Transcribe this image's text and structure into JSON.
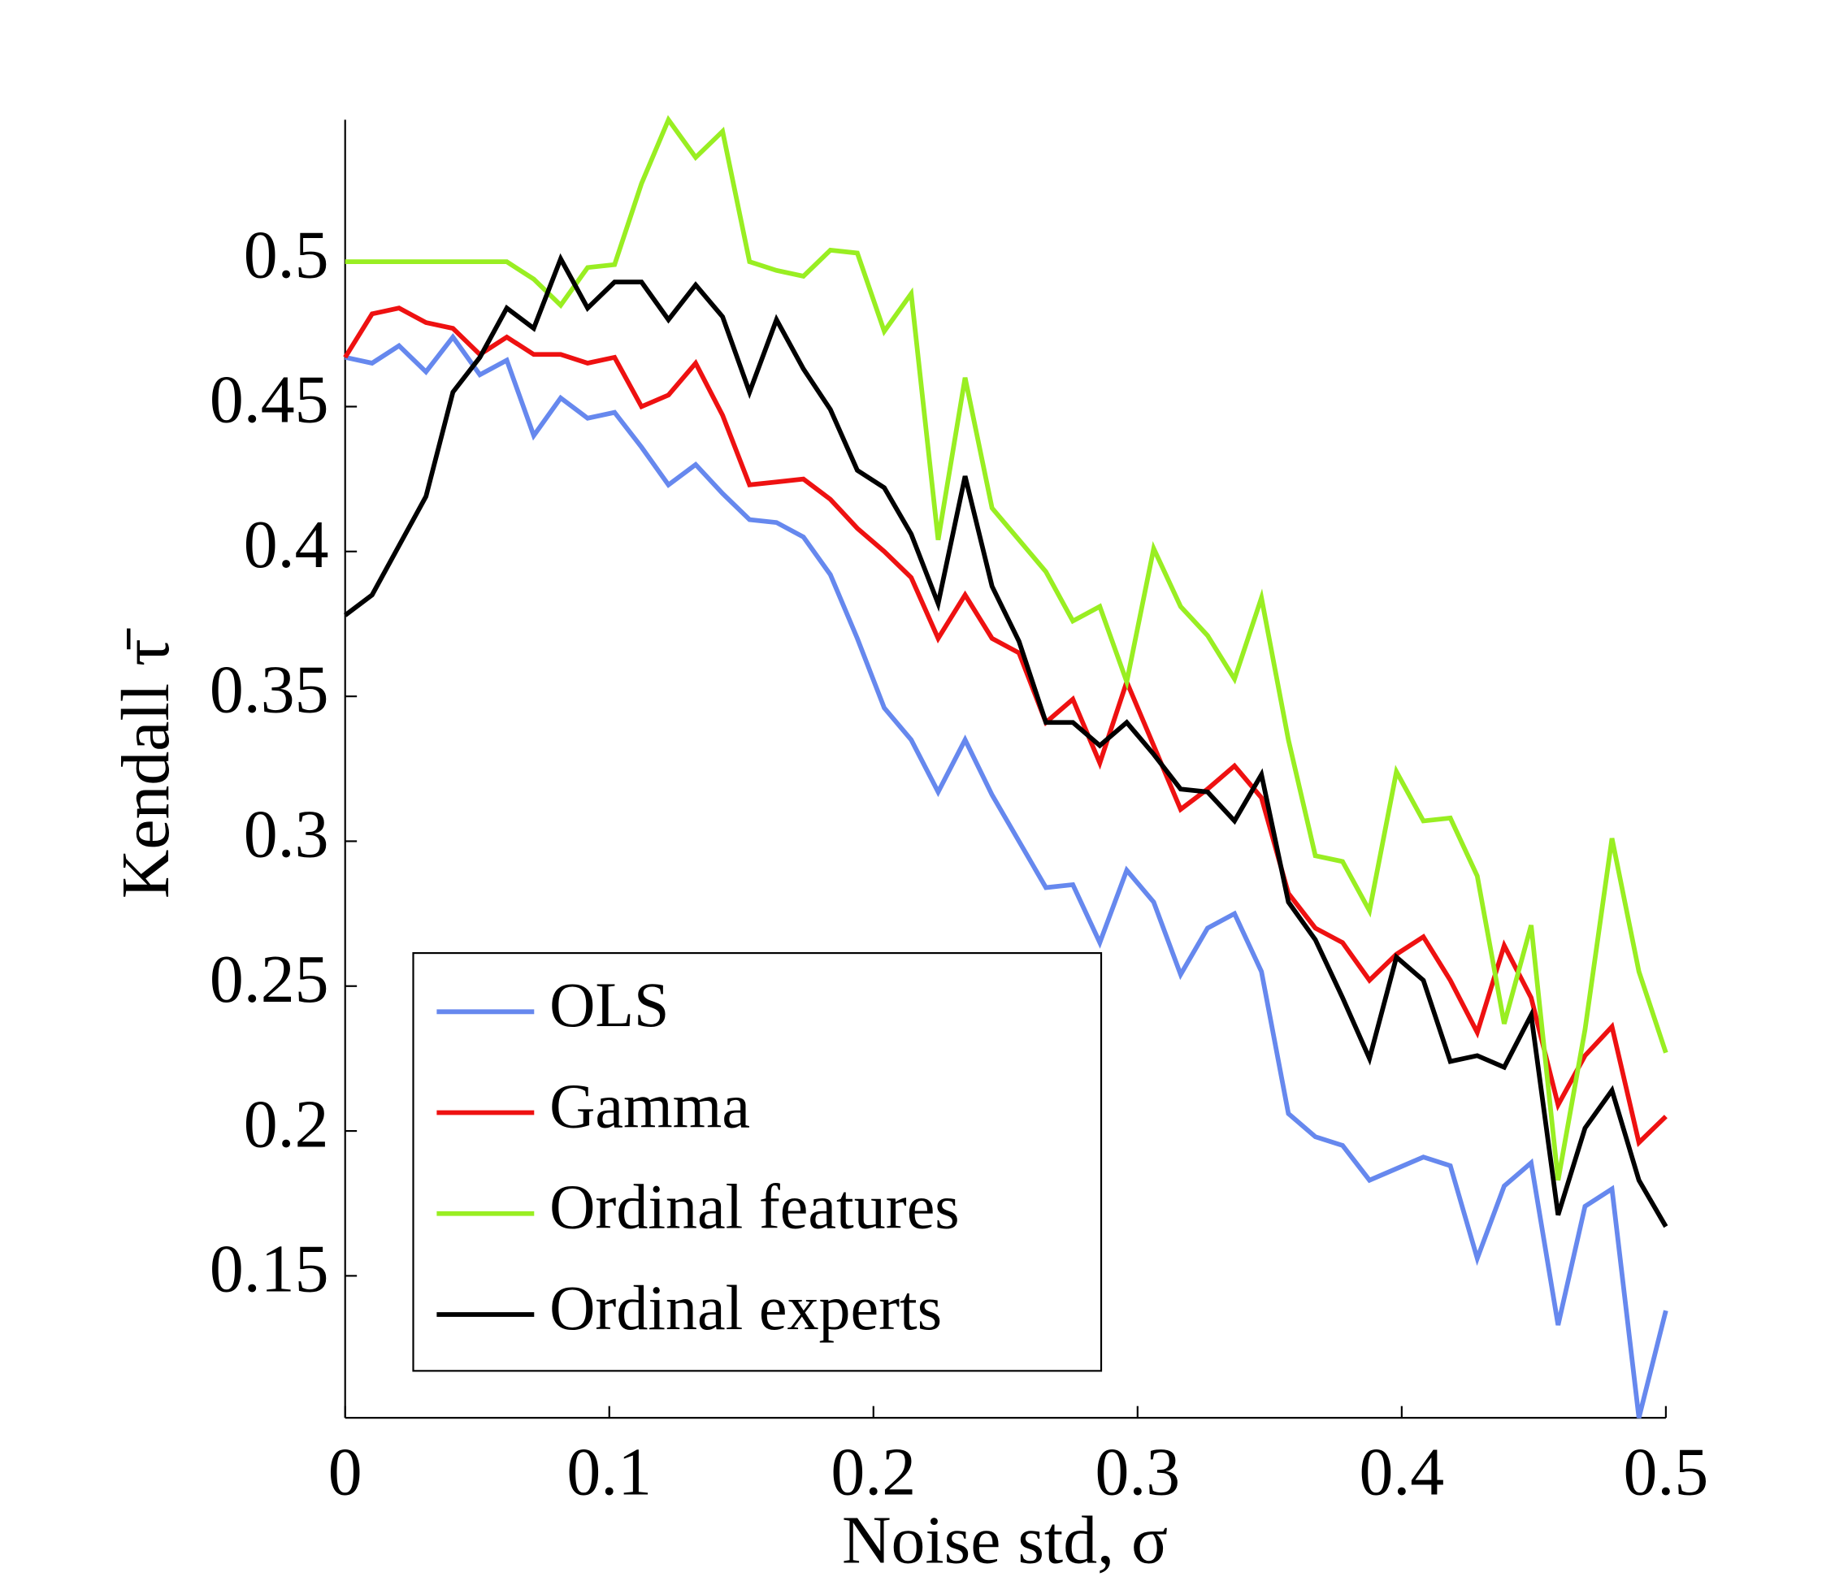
{
  "chart_data": {
    "type": "line",
    "xlabel": "Noise std, σ",
    "ylabel": "Kendall τ̄",
    "x": [
      0,
      0.0102,
      0.0204,
      0.0306,
      0.0408,
      0.051,
      0.0612,
      0.0714,
      0.0816,
      0.0918,
      0.102,
      0.1122,
      0.1224,
      0.1327,
      0.1429,
      0.1531,
      0.1633,
      0.1735,
      0.1837,
      0.1939,
      0.2041,
      0.2143,
      0.2245,
      0.2347,
      0.2449,
      0.2551,
      0.2653,
      0.2755,
      0.2857,
      0.2959,
      0.3061,
      0.3163,
      0.3265,
      0.3367,
      0.3469,
      0.3571,
      0.3673,
      0.3776,
      0.3878,
      0.398,
      0.4082,
      0.4184,
      0.4286,
      0.4388,
      0.449,
      0.4592,
      0.4694,
      0.4796,
      0.4898,
      0.5
    ],
    "series": [
      {
        "name": "OLS",
        "color": "#6688ee",
        "values": [
          0.467,
          0.465,
          0.471,
          0.462,
          0.474,
          0.461,
          0.466,
          0.44,
          0.453,
          0.446,
          0.448,
          0.436,
          0.423,
          0.43,
          0.42,
          0.411,
          0.41,
          0.405,
          0.392,
          0.37,
          0.346,
          0.335,
          0.317,
          0.335,
          0.316,
          0.3,
          0.284,
          0.285,
          0.265,
          0.29,
          0.279,
          0.254,
          0.27,
          0.275,
          0.255,
          0.206,
          0.198,
          0.195,
          0.183,
          0.187,
          0.191,
          0.188,
          0.156,
          0.181,
          0.189,
          0.133,
          0.174,
          0.18,
          0.101,
          0.138
        ]
      },
      {
        "name": "Gamma",
        "color": "#ee1111",
        "values": [
          0.467,
          0.482,
          0.484,
          0.479,
          0.477,
          0.468,
          0.474,
          0.468,
          0.468,
          0.465,
          0.467,
          0.45,
          0.454,
          0.465,
          0.447,
          0.423,
          0.424,
          0.425,
          0.418,
          0.408,
          0.4,
          0.391,
          0.37,
          0.385,
          0.37,
          0.365,
          0.341,
          0.349,
          0.327,
          0.355,
          0.333,
          0.311,
          0.318,
          0.326,
          0.315,
          0.282,
          0.27,
          0.265,
          0.252,
          0.261,
          0.267,
          0.252,
          0.234,
          0.264,
          0.246,
          0.209,
          0.226,
          0.236,
          0.196,
          0.205
        ]
      },
      {
        "name": "Ordinal features",
        "color": "#99ee22",
        "values": [
          0.5,
          0.5,
          0.5,
          0.5,
          0.5,
          0.5,
          0.5,
          0.494,
          0.485,
          0.498,
          0.499,
          0.527,
          0.549,
          0.536,
          0.545,
          0.5,
          0.497,
          0.495,
          0.504,
          0.503,
          0.476,
          0.489,
          0.404,
          0.46,
          0.415,
          0.404,
          0.393,
          0.376,
          0.381,
          0.355,
          0.401,
          0.381,
          0.371,
          0.356,
          0.384,
          0.335,
          0.295,
          0.293,
          0.276,
          0.324,
          0.307,
          0.308,
          0.288,
          0.237,
          0.271,
          0.183,
          0.235,
          0.301,
          0.255,
          0.227
        ]
      },
      {
        "name": "Ordinal experts",
        "color": "#000000",
        "values": [
          0.378,
          0.385,
          0.402,
          0.419,
          0.455,
          0.467,
          0.484,
          0.477,
          0.501,
          0.484,
          0.493,
          0.493,
          0.48,
          0.492,
          0.481,
          0.455,
          0.48,
          0.463,
          0.449,
          0.428,
          0.422,
          0.406,
          0.382,
          0.426,
          0.388,
          0.369,
          0.341,
          0.341,
          0.333,
          0.341,
          0.33,
          0.318,
          0.317,
          0.307,
          0.323,
          0.279,
          0.266,
          0.246,
          0.225,
          0.26,
          0.252,
          0.224,
          0.226,
          0.222,
          0.24,
          0.171,
          0.201,
          0.214,
          0.183,
          0.167
        ]
      }
    ],
    "xlim": [
      0,
      0.5
    ],
    "xticks": [
      0,
      0.1,
      0.2,
      0.3,
      0.4,
      0.5
    ],
    "ylim": [
      0.101,
      0.549
    ],
    "yticks": [
      0.15,
      0.2,
      0.25,
      0.3,
      0.35,
      0.4,
      0.45,
      0.5
    ],
    "legend": "lower left"
  }
}
